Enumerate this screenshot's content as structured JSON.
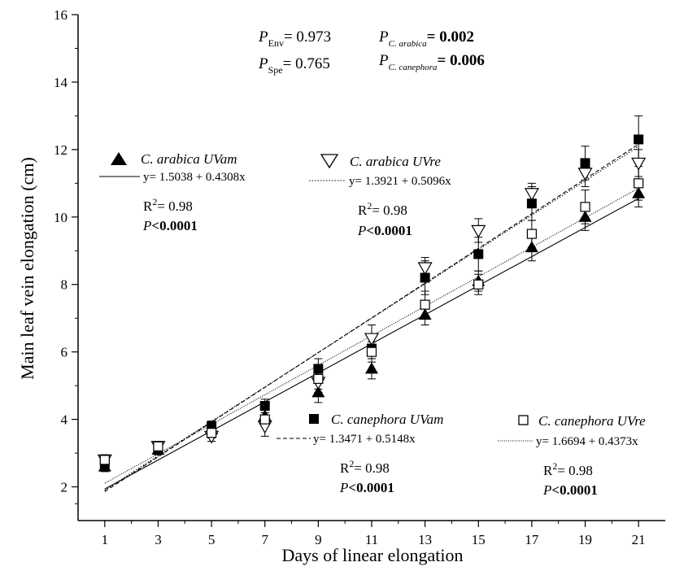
{
  "chart_data": {
    "type": "scatter",
    "title": "",
    "xlabel": "Days of linear elongation",
    "ylabel": "Main leaf vein elongation (cm)",
    "xlim": [
      0,
      22
    ],
    "ylim": [
      1,
      16
    ],
    "x_ticks": [
      1,
      3,
      5,
      7,
      9,
      11,
      13,
      15,
      17,
      19,
      21
    ],
    "y_ticks": [
      2,
      4,
      6,
      8,
      10,
      12,
      14,
      16
    ],
    "grid": false,
    "x": [
      1,
      3,
      5,
      7,
      9,
      11,
      13,
      15,
      17,
      19,
      21
    ],
    "series": [
      {
        "name": "C. arabica UVam",
        "marker": "filled-triangle",
        "values": [
          2.6,
          3.1,
          3.7,
          4.1,
          4.8,
          5.5,
          7.1,
          8.1,
          9.1,
          10.0,
          10.7
        ],
        "errors": [
          0.15,
          0.15,
          0.15,
          0.3,
          0.3,
          0.3,
          0.3,
          0.3,
          0.4,
          0.4,
          0.4
        ],
        "fit": {
          "intercept": 1.5038,
          "slope": 0.4308,
          "equation": "y= 1.5038 + 0.4308x",
          "r2_label": "R",
          "r2_sup": "2",
          "r2_value": "= 0.98",
          "p_prefix": "P",
          "p_value": "<0.0001",
          "line_style": "solid"
        }
      },
      {
        "name": "C. arabica UVre",
        "marker": "open-inverted-triangle",
        "values": [
          2.8,
          3.2,
          3.5,
          3.8,
          5.1,
          6.4,
          8.5,
          9.6,
          10.7,
          11.3,
          11.6
        ],
        "errors": [
          0.15,
          0.15,
          0.15,
          0.3,
          0.3,
          0.4,
          0.3,
          0.35,
          0.3,
          0.4,
          0.4
        ],
        "fit": {
          "intercept": 1.3921,
          "slope": 0.5096,
          "equation": "y= 1.3921 + 0.5096x",
          "r2_label": "R",
          "r2_sup": "2",
          "r2_value": "= 0.98",
          "p_prefix": "P",
          "p_value": "<0.0001",
          "line_style": "dotted"
        }
      },
      {
        "name": "C. canephora UVam",
        "marker": "filled-square",
        "values": [
          2.7,
          3.2,
          3.8,
          4.4,
          5.5,
          6.1,
          8.2,
          8.9,
          10.4,
          11.6,
          12.3
        ],
        "errors": [
          0.15,
          0.15,
          0.15,
          0.2,
          0.3,
          0.3,
          0.5,
          0.5,
          0.5,
          0.5,
          0.7
        ],
        "fit": {
          "intercept": 1.3471,
          "slope": 0.5148,
          "equation": "y= 1.3471 + 0.5148x",
          "r2_label": "R",
          "r2_sup": "2",
          "r2_value": "= 0.98",
          "p_prefix": "P",
          "p_value": "<0.0001",
          "line_style": "dashed"
        }
      },
      {
        "name": "C. canephora UVre",
        "marker": "open-square",
        "values": [
          2.8,
          3.2,
          3.6,
          4.0,
          5.2,
          6.0,
          7.4,
          8.0,
          9.5,
          10.3,
          11.0
        ],
        "errors": [
          0.15,
          0.15,
          0.15,
          0.2,
          0.3,
          0.3,
          0.4,
          0.3,
          0.4,
          0.5,
          0.5
        ],
        "fit": {
          "intercept": 1.6694,
          "slope": 0.4373,
          "equation": "y= 1.6694 + 0.4373x",
          "r2_label": "R",
          "r2_sup": "2",
          "r2_value": "= 0.98",
          "p_prefix": "P",
          "p_value": "<0.0001",
          "line_style": "dense-dotted"
        }
      }
    ],
    "annotations": {
      "p_env": {
        "label": "P",
        "sub": "Env",
        "value": "= 0.973"
      },
      "p_spe": {
        "label": "P",
        "sub": "Spe",
        "value": "= 0.765"
      },
      "p_arabica": {
        "label": "P",
        "sub": "C. arabica",
        "value": "= 0.002"
      },
      "p_canephora": {
        "label": "P",
        "sub": "C. canephora",
        "value": "= 0.006"
      }
    }
  }
}
